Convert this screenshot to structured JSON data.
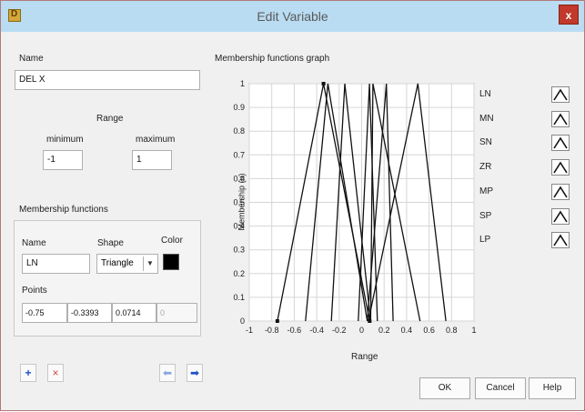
{
  "window": {
    "title": "Edit Variable",
    "close_label": "x"
  },
  "name_section": {
    "label": "Name",
    "value": "DEL X"
  },
  "range": {
    "label": "Range",
    "minimum_label": "minimum",
    "maximum_label": "maximum",
    "minimum_value": "-1",
    "maximum_value": "1"
  },
  "membership": {
    "section_label": "Membership functions",
    "name_label": "Name",
    "name_value": "LN",
    "shape_label": "Shape",
    "shape_value": "Triangle",
    "color_label": "Color",
    "color_value": "#000000",
    "points_label": "Points",
    "points": [
      "-0.75",
      "-0.3393",
      "0.0714",
      "0"
    ]
  },
  "toolbar": {
    "add_icon": "plus-icon",
    "delete_icon": "x-icon",
    "prev_icon": "arrow-left-icon",
    "next_icon": "arrow-right-icon"
  },
  "buttons": {
    "ok": "OK",
    "cancel": "Cancel",
    "help": "Help"
  },
  "graph": {
    "title": "Membership functions graph",
    "legend": [
      "LN",
      "MN",
      "SN",
      "ZR",
      "MP",
      "SP",
      "LP"
    ],
    "shape_icon": "triangle-shape-icon"
  },
  "chart_data": {
    "type": "line",
    "title": "Membership functions graph",
    "xlabel": "Range",
    "ylabel": "Membership (u)",
    "xlim": [
      -1,
      1
    ],
    "ylim": [
      0,
      1
    ],
    "x_ticks": [
      "-1",
      "-0.8",
      "-0.6",
      "-0.4",
      "-0.2",
      "0",
      "0.2",
      "0.4",
      "0.6",
      "0.8",
      "1"
    ],
    "y_ticks": [
      "0",
      "0.1",
      "0.2",
      "0.3",
      "0.4",
      "0.5",
      "0.6",
      "0.7",
      "0.8",
      "0.9",
      "1"
    ],
    "grid": true,
    "series": [
      {
        "name": "LN",
        "points": [
          [
            -0.75,
            0
          ],
          [
            -0.3393,
            1
          ],
          [
            0.0714,
            0
          ]
        ]
      },
      {
        "name": "MN",
        "points": [
          [
            -0.5,
            0
          ],
          [
            -0.3,
            1
          ],
          [
            0.05,
            0
          ]
        ]
      },
      {
        "name": "SN",
        "points": [
          [
            -0.27,
            0
          ],
          [
            -0.15,
            1
          ],
          [
            0.08,
            0
          ]
        ]
      },
      {
        "name": "ZR",
        "points": [
          [
            -0.03,
            0
          ],
          [
            0.07,
            1
          ],
          [
            0.14,
            0
          ]
        ]
      },
      {
        "name": "MP",
        "points": [
          [
            0.05,
            0
          ],
          [
            0.22,
            1
          ],
          [
            0.28,
            0
          ]
        ]
      },
      {
        "name": "SP",
        "points": [
          [
            0.08,
            0
          ],
          [
            0.1,
            1
          ],
          [
            0.52,
            0
          ]
        ]
      },
      {
        "name": "LP",
        "points": [
          [
            0.06,
            0
          ],
          [
            0.5,
            1
          ],
          [
            0.75,
            0
          ]
        ]
      }
    ]
  }
}
